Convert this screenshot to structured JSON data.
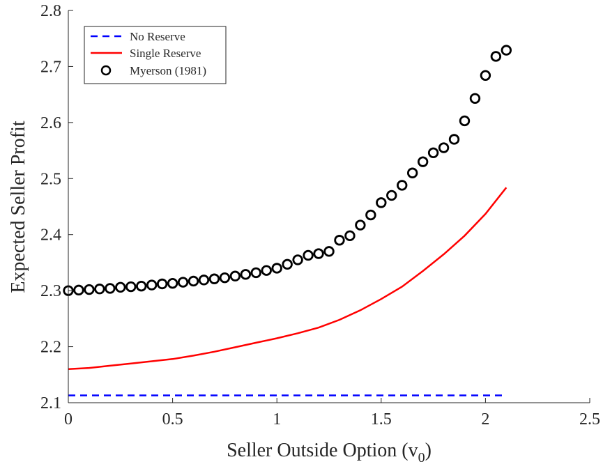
{
  "chart_data": {
    "type": "line",
    "xlabel": "Seller Outside Option (v",
    "xlabel_sub": "0",
    "xlabel_suffix": ")",
    "ylabel": "Expected Seller Profit",
    "xlim": [
      0,
      2.5
    ],
    "ylim": [
      2.1,
      2.8
    ],
    "xticks": [
      0,
      0.5,
      1,
      1.5,
      2,
      2.5
    ],
    "xtick_labels": [
      "0",
      "0.5",
      "1",
      "1.5",
      "2",
      "2.5"
    ],
    "yticks": [
      2.1,
      2.2,
      2.3,
      2.4,
      2.5,
      2.6,
      2.7,
      2.8
    ],
    "ytick_labels": [
      "2.1",
      "2.2",
      "2.3",
      "2.4",
      "2.5",
      "2.6",
      "2.7",
      "2.8"
    ],
    "grid": false,
    "legend_position": "top-left",
    "series": [
      {
        "name": "No Reserve",
        "style": "dashed",
        "color": "#0000ff",
        "x": [
          0,
          2.1
        ],
        "y": [
          2.113,
          2.113
        ]
      },
      {
        "name": "Single Reserve",
        "style": "solid",
        "color": "#ff0000",
        "x": [
          0,
          0.1,
          0.2,
          0.3,
          0.4,
          0.5,
          0.6,
          0.7,
          0.8,
          0.9,
          1.0,
          1.1,
          1.2,
          1.3,
          1.4,
          1.5,
          1.6,
          1.7,
          1.8,
          1.9,
          2.0,
          2.1
        ],
        "y": [
          2.16,
          2.162,
          2.166,
          2.17,
          2.174,
          2.178,
          2.184,
          2.191,
          2.199,
          2.207,
          2.215,
          2.224,
          2.234,
          2.248,
          2.265,
          2.285,
          2.307,
          2.335,
          2.365,
          2.398,
          2.437,
          2.484
        ]
      },
      {
        "name": "Myerson (1981)",
        "style": "markers",
        "color": "#000000",
        "x": [
          0,
          0.05,
          0.1,
          0.15,
          0.2,
          0.25,
          0.3,
          0.35,
          0.4,
          0.45,
          0.5,
          0.55,
          0.6,
          0.65,
          0.7,
          0.75,
          0.8,
          0.85,
          0.9,
          0.95,
          1.0,
          1.05,
          1.1,
          1.15,
          1.2,
          1.25,
          1.3,
          1.35,
          1.4,
          1.45,
          1.5,
          1.55,
          1.6,
          1.65,
          1.7,
          1.75,
          1.8,
          1.85,
          1.9,
          1.95,
          2.0,
          2.05,
          2.1
        ],
        "y": [
          2.3,
          2.301,
          2.302,
          2.303,
          2.304,
          2.306,
          2.307,
          2.308,
          2.31,
          2.312,
          2.313,
          2.315,
          2.317,
          2.319,
          2.321,
          2.323,
          2.326,
          2.329,
          2.332,
          2.336,
          2.34,
          2.347,
          2.355,
          2.363,
          2.366,
          2.37,
          2.39,
          2.398,
          2.417,
          2.435,
          2.457,
          2.47,
          2.488,
          2.51,
          2.53,
          2.546,
          2.555,
          2.57,
          2.603,
          2.643,
          2.684,
          2.718,
          2.729
        ]
      }
    ]
  }
}
